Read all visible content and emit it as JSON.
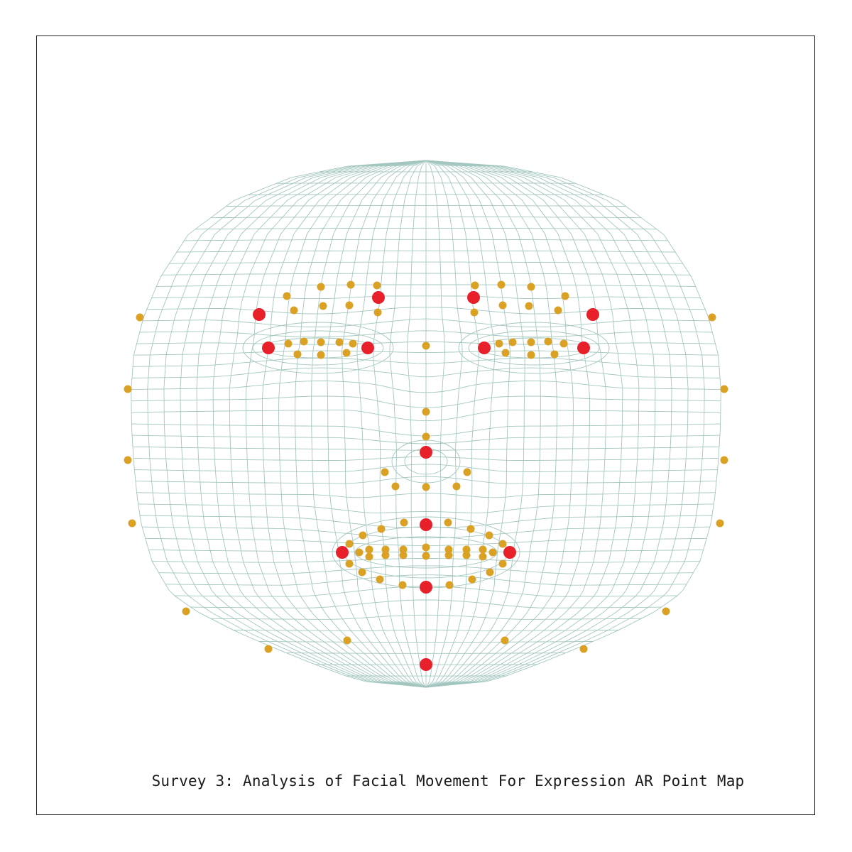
{
  "caption": "Survey 3: Analysis of Facial Movement For Expression AR Point Map",
  "colors": {
    "background": "#ffffff",
    "frame": "#222222",
    "mesh": "#9fc4bd",
    "landmark_minor": "#dba124",
    "landmark_major": "#e8202a",
    "caption": "#1a1a1a"
  },
  "icons": {
    "mesh": "face-wireframe-mesh",
    "minor_point": "amber-dot",
    "major_point": "red-dot"
  }
}
